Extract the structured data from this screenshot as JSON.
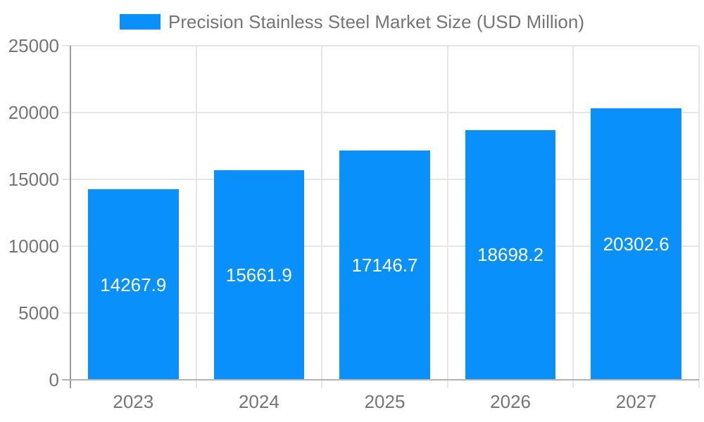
{
  "legend": {
    "label": "Precision Stainless Steel Market Size (USD Million)"
  },
  "chart_data": {
    "type": "bar",
    "title": "Precision Stainless Steel Market Size (USD Million)",
    "categories": [
      "2023",
      "2024",
      "2025",
      "2026",
      "2027"
    ],
    "series": [
      {
        "name": "Precision Stainless Steel Market Size (USD Million)",
        "values": [
          14267.9,
          15661.9,
          17146.7,
          18698.2,
          20302.6
        ]
      }
    ],
    "data_labels": [
      "14267.9",
      "15661.9",
      "17146.7",
      "18698.2",
      "20302.6"
    ],
    "xlabel": "",
    "ylabel": "",
    "ylim": [
      0,
      25000
    ],
    "ytick_step": 5000,
    "ytick_labels": [
      "0",
      "5000",
      "10000",
      "15000",
      "20000",
      "25000"
    ],
    "grid": true,
    "legend_position": "top-center",
    "colors": {
      "bar": "#0990fa",
      "grid": "#e6e6e6",
      "axis": "#9a9a9a",
      "baseline": "#b3b3b3",
      "text": "#757575",
      "data_label": "#ffffff",
      "background": "#ffffff"
    }
  }
}
